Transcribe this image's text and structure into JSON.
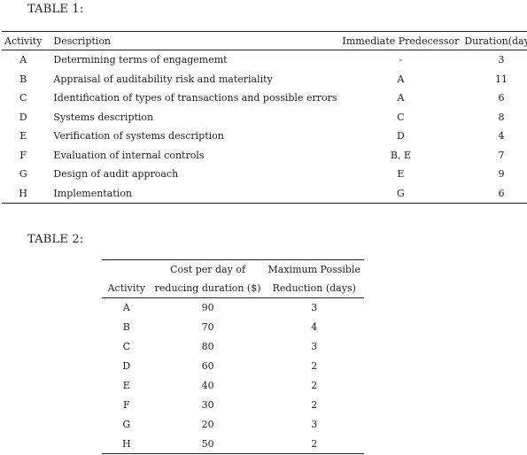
{
  "table1": {
    "caption": "TABLE 1:",
    "headers": {
      "activity": "Activity",
      "description": "Description",
      "predecessor": "Immediate Predecessor",
      "duration": "Duration(days)"
    },
    "rows": [
      {
        "activity": "A",
        "description": "Determining terms of engagememt",
        "predecessor": "-",
        "duration": "3"
      },
      {
        "activity": "B",
        "description": "Appraisal of auditability risk and materiality",
        "predecessor": "A",
        "duration": "11"
      },
      {
        "activity": "C",
        "description": "Identification of types of transactions and possible errors",
        "predecessor": "A",
        "duration": "6"
      },
      {
        "activity": "D",
        "description": "Systems description",
        "predecessor": "C",
        "duration": "8"
      },
      {
        "activity": "E",
        "description": "Verification of systems description",
        "predecessor": "D",
        "duration": "4"
      },
      {
        "activity": "F",
        "description": "Evaluation of internal controls",
        "predecessor": "B, E",
        "duration": "7"
      },
      {
        "activity": "G",
        "description": "Design of audit approach",
        "predecessor": "E",
        "duration": "9"
      },
      {
        "activity": "H",
        "description": "Implementation",
        "predecessor": "G",
        "duration": "6"
      }
    ]
  },
  "table2": {
    "caption": "TABLE 2:",
    "headers": {
      "cost_line1": "Cost per day of",
      "reduction_line1": "Maximum Possible",
      "activity": "Activity",
      "cost_line2": "reducing duration ($)",
      "reduction_line2": "Reduction (days)"
    },
    "rows": [
      {
        "activity": "A",
        "cost": "90",
        "reduction": "3"
      },
      {
        "activity": "B",
        "cost": "70",
        "reduction": "4"
      },
      {
        "activity": "C",
        "cost": "80",
        "reduction": "3"
      },
      {
        "activity": "D",
        "cost": "60",
        "reduction": "2"
      },
      {
        "activity": "E",
        "cost": "40",
        "reduction": "2"
      },
      {
        "activity": "F",
        "cost": "30",
        "reduction": "2"
      },
      {
        "activity": "G",
        "cost": "20",
        "reduction": "3"
      },
      {
        "activity": "H",
        "cost": "50",
        "reduction": "2"
      }
    ]
  }
}
